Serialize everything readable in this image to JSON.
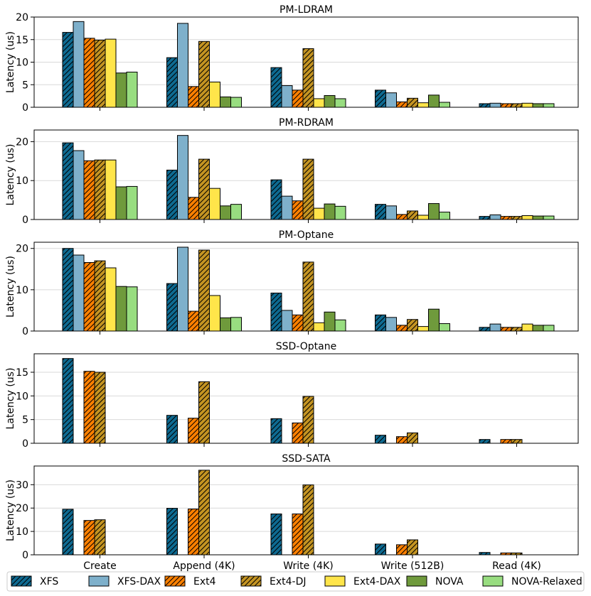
{
  "chart_data": {
    "type": "bar",
    "categories": [
      "Create",
      "Append (4K)",
      "Write (4K)",
      "Write (512B)",
      "Read (4K)"
    ],
    "ylabel": "Latency (us)",
    "legend_placement": "bottom",
    "series_styles": [
      {
        "name": "XFS",
        "color": "#0e6a91",
        "hatch": true
      },
      {
        "name": "XFS-DAX",
        "color": "#7eb0cb",
        "hatch": false
      },
      {
        "name": "Ext4",
        "color": "#ff8000",
        "hatch": true
      },
      {
        "name": "Ext4-DJ",
        "color": "#c49422",
        "hatch": true
      },
      {
        "name": "Ext4-DAX",
        "color": "#ffe54a",
        "hatch": false
      },
      {
        "name": "NOVA",
        "color": "#6f9a3c",
        "hatch": false
      },
      {
        "name": "NOVA-Relaxed",
        "color": "#98dd80",
        "hatch": false
      }
    ],
    "panels": [
      {
        "title": "PM-LDRAM",
        "ylim": [
          0,
          20
        ],
        "yticks": [
          0,
          5,
          10,
          15,
          20
        ],
        "series": [
          {
            "name": "XFS",
            "values": [
              16.6,
              11.0,
              8.8,
              3.8,
              0.8
            ]
          },
          {
            "name": "XFS-DAX",
            "values": [
              19.0,
              18.6,
              4.8,
              3.2,
              0.9
            ]
          },
          {
            "name": "Ext4",
            "values": [
              15.3,
              4.6,
              3.8,
              1.2,
              0.8
            ]
          },
          {
            "name": "Ext4-DJ",
            "values": [
              14.9,
              14.6,
              13.0,
              2.0,
              0.8
            ]
          },
          {
            "name": "Ext4-DAX",
            "values": [
              15.1,
              5.6,
              1.9,
              1.0,
              0.9
            ]
          },
          {
            "name": "NOVA",
            "values": [
              7.6,
              2.3,
              2.6,
              2.7,
              0.8
            ]
          },
          {
            "name": "NOVA-Relaxed",
            "values": [
              7.8,
              2.2,
              1.9,
              1.1,
              0.8
            ]
          }
        ]
      },
      {
        "title": "PM-RDRAM",
        "ylim": [
          0,
          23
        ],
        "yticks": [
          0,
          10,
          20
        ],
        "series": [
          {
            "name": "XFS",
            "values": [
              19.7,
              12.7,
              10.2,
              3.9,
              0.8
            ]
          },
          {
            "name": "XFS-DAX",
            "values": [
              17.7,
              21.6,
              6.0,
              3.5,
              1.2
            ]
          },
          {
            "name": "Ext4",
            "values": [
              15.1,
              5.7,
              4.8,
              1.3,
              0.8
            ]
          },
          {
            "name": "Ext4-DJ",
            "values": [
              15.3,
              15.5,
              15.5,
              2.2,
              0.8
            ]
          },
          {
            "name": "Ext4-DAX",
            "values": [
              15.3,
              8.0,
              2.9,
              1.1,
              1.0
            ]
          },
          {
            "name": "NOVA",
            "values": [
              8.4,
              3.5,
              4.0,
              4.1,
              0.9
            ]
          },
          {
            "name": "NOVA-Relaxed",
            "values": [
              8.5,
              3.9,
              3.4,
              1.9,
              0.9
            ]
          }
        ]
      },
      {
        "title": "PM-Optane",
        "ylim": [
          0,
          21.5
        ],
        "yticks": [
          0,
          10,
          20
        ],
        "series": [
          {
            "name": "XFS",
            "values": [
              20.0,
              11.5,
              9.2,
              3.9,
              0.9
            ]
          },
          {
            "name": "XFS-DAX",
            "values": [
              18.4,
              20.3,
              5.0,
              3.3,
              1.7
            ]
          },
          {
            "name": "Ext4",
            "values": [
              16.6,
              4.8,
              3.9,
              1.4,
              0.9
            ]
          },
          {
            "name": "Ext4-DJ",
            "values": [
              17.0,
              19.6,
              16.7,
              2.8,
              0.9
            ]
          },
          {
            "name": "Ext4-DAX",
            "values": [
              15.3,
              8.6,
              2.0,
              1.1,
              1.7
            ]
          },
          {
            "name": "NOVA",
            "values": [
              10.8,
              3.2,
              4.6,
              5.3,
              1.4
            ]
          },
          {
            "name": "NOVA-Relaxed",
            "values": [
              10.7,
              3.3,
              2.7,
              1.8,
              1.4
            ]
          }
        ]
      },
      {
        "title": "SSD-Optane",
        "ylim": [
          0,
          18.9
        ],
        "yticks": [
          0,
          5,
          10,
          15
        ],
        "series": [
          {
            "name": "XFS",
            "values": [
              17.9,
              5.9,
              5.2,
              1.7,
              0.8
            ]
          },
          {
            "name": "XFS-DAX",
            "values": [
              0,
              0,
              0,
              0,
              0
            ]
          },
          {
            "name": "Ext4",
            "values": [
              15.2,
              5.3,
              4.3,
              1.4,
              0.8
            ]
          },
          {
            "name": "Ext4-DJ",
            "values": [
              15.0,
              13.0,
              9.9,
              2.2,
              0.8
            ]
          },
          {
            "name": "Ext4-DAX",
            "values": [
              0,
              0,
              0,
              0,
              0
            ]
          },
          {
            "name": "NOVA",
            "values": [
              0,
              0,
              0,
              0,
              0
            ]
          },
          {
            "name": "NOVA-Relaxed",
            "values": [
              0,
              0,
              0,
              0,
              0
            ]
          }
        ]
      },
      {
        "title": "SSD-SATA",
        "ylim": [
          0,
          38
        ],
        "yticks": [
          0,
          10,
          20,
          30
        ],
        "series": [
          {
            "name": "XFS",
            "values": [
              19.5,
              19.9,
              17.5,
              4.6,
              1.0
            ]
          },
          {
            "name": "XFS-DAX",
            "values": [
              0,
              0,
              0,
              0,
              0
            ]
          },
          {
            "name": "Ext4",
            "values": [
              14.7,
              19.6,
              17.5,
              4.3,
              0.8
            ]
          },
          {
            "name": "Ext4-DJ",
            "values": [
              15.0,
              36.2,
              29.9,
              6.4,
              0.8
            ]
          },
          {
            "name": "Ext4-DAX",
            "values": [
              0,
              0,
              0,
              0,
              0
            ]
          },
          {
            "name": "NOVA",
            "values": [
              0,
              0,
              0,
              0,
              0
            ]
          },
          {
            "name": "NOVA-Relaxed",
            "values": [
              0,
              0,
              0,
              0,
              0
            ]
          }
        ]
      }
    ]
  }
}
